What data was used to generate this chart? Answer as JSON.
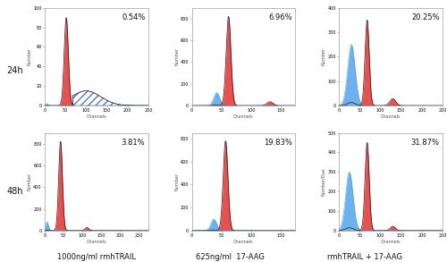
{
  "percentages": [
    [
      "0.54%",
      "6.96%",
      "20.25%"
    ],
    [
      "3.81%",
      "19.83%",
      "31.87%"
    ]
  ],
  "row_labels": [
    "24h",
    "48h"
  ],
  "col_labels": [
    "1000ng/ml rmhTRAIL",
    "625ng/ml  17-AAG",
    "rmhTRAIL + 17-AAG"
  ],
  "bg_color": "#ffffff",
  "panels": [
    [
      {
        "red_mu": 52,
        "red_sigma": 5,
        "red_amp": 90,
        "blue_mu": 5,
        "blue_sigma": 3,
        "blue_amp": 2,
        "hatch_mu": 100,
        "hatch_sigma": 35,
        "hatch_amp": 15,
        "hatch_start": 68,
        "ymax": 100,
        "xmax": 250,
        "xticks": [
          0,
          50,
          100,
          150,
          200,
          250
        ],
        "yticks": [
          0,
          20,
          40,
          60,
          80,
          100
        ],
        "ylabel": "Number"
      },
      {
        "red_mu": 62,
        "red_sigma": 4,
        "red_amp": 820,
        "blue_mu": 42,
        "blue_sigma": 5,
        "blue_amp": 120,
        "red2_mu": 132,
        "red2_sigma": 5,
        "red2_amp": 35,
        "ymax": 900,
        "xmax": 175,
        "xticks": [
          0,
          50,
          100,
          150
        ],
        "yticks": [
          0,
          200,
          400,
          600,
          800
        ],
        "ylabel": "Number"
      },
      {
        "red_mu": 68,
        "red_sigma": 5,
        "red_amp": 350,
        "blue_mu": 30,
        "blue_sigma": 9,
        "blue_amp": 250,
        "red2_mu": 130,
        "red2_sigma": 7,
        "red2_amp": 28,
        "ymax": 400,
        "xmax": 250,
        "xticks": [
          0,
          50,
          100,
          150,
          200,
          250
        ],
        "yticks": [
          0,
          100,
          200,
          300,
          400
        ],
        "ylabel": "Number"
      }
    ],
    [
      {
        "red_mu": 42,
        "red_sigma": 5,
        "red_amp": 820,
        "blue_mu": 6,
        "blue_sigma": 4,
        "blue_amp": 80,
        "red2_mu": 112,
        "red2_sigma": 5,
        "red2_amp": 28,
        "ymax": 900,
        "xmax": 275,
        "xticks": [
          0,
          50,
          100,
          150,
          200,
          250
        ],
        "yticks": [
          0,
          200,
          400,
          600,
          800
        ],
        "ylabel": "Number"
      },
      {
        "red_mu": 57,
        "red_sigma": 4,
        "red_amp": 780,
        "blue_mu": 37,
        "blue_sigma": 5,
        "blue_amp": 100,
        "ymax": 850,
        "xmax": 175,
        "xticks": [
          0,
          50,
          100,
          150
        ],
        "yticks": [
          0,
          200,
          400,
          600,
          800
        ],
        "ylabel": "Number"
      },
      {
        "red_mu": 68,
        "red_sigma": 5,
        "red_amp": 450,
        "blue_mu": 25,
        "blue_sigma": 9,
        "blue_amp": 300,
        "red2_mu": 130,
        "red2_sigma": 6,
        "red2_amp": 22,
        "ymax": 500,
        "xmax": 250,
        "xticks": [
          0,
          50,
          100,
          150,
          200,
          250
        ],
        "yticks": [
          0,
          100,
          200,
          300,
          400,
          500
        ],
        "ylabel": "Number/Dye"
      }
    ]
  ]
}
